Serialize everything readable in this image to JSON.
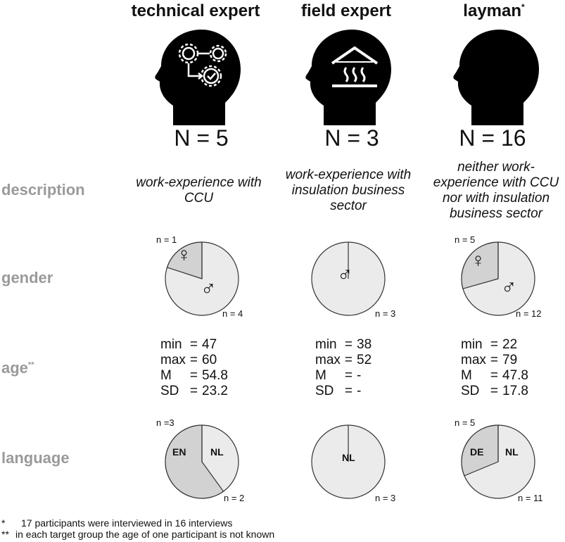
{
  "columns": [
    {
      "title": "technical expert",
      "title_sup": "",
      "n_label": "N = 5",
      "description": "work-experience with CCU",
      "gender": {
        "female_label": "n = 1",
        "male_label": "n = 4",
        "female_fraction": 0.2
      },
      "age": {
        "min": "47",
        "max": "60",
        "M": "54.8",
        "SD": "23.2"
      },
      "language": {
        "first_label": "n =3",
        "second_label": "n = 2",
        "first_code": "EN",
        "second_code": "NL",
        "first_fraction": 0.6
      }
    },
    {
      "title": "field expert",
      "title_sup": "",
      "n_label": "N = 3",
      "description": "work-experience with insulation business sector",
      "gender": {
        "female_label": "",
        "male_label": "n = 3",
        "female_fraction": 0.0
      },
      "age": {
        "min": "38",
        "max": "52",
        "M": "-",
        "SD": "-"
      },
      "language": {
        "first_label": "",
        "second_label": "n = 3",
        "first_code": "",
        "second_code": "NL",
        "first_fraction": 0.0
      }
    },
    {
      "title": "layman",
      "title_sup": "*",
      "n_label": "N = 16",
      "description": "neither work-experience with CCU nor with insulation business sector",
      "gender": {
        "female_label": "n = 5",
        "male_label": "n = 12",
        "female_fraction": 0.294
      },
      "age": {
        "min": "22",
        "max": "79",
        "M": "47.8",
        "SD": "17.8"
      },
      "language": {
        "first_label": "n = 5",
        "second_label": "n = 11",
        "first_code": "DE",
        "second_code": "NL",
        "first_fraction": 0.3125
      }
    }
  ],
  "rows": {
    "description": "description",
    "gender": "gender",
    "age": "age",
    "age_sup": "**",
    "language": "language"
  },
  "stat_keys": {
    "min": "min",
    "max": "max",
    "M": "M",
    "SD": "SD"
  },
  "symbols": {
    "female": "♀",
    "male": "♂"
  },
  "footnotes": [
    {
      "mark": "*",
      "text": "17 participants were interviewed in 16 interviews"
    },
    {
      "mark": "**",
      "text": "in each target group the age of one participant is not known"
    }
  ],
  "colors": {
    "label_gray": "#9a9a9a",
    "pie_light": "#ebebeb",
    "pie_dark": "#d2d2d2"
  }
}
